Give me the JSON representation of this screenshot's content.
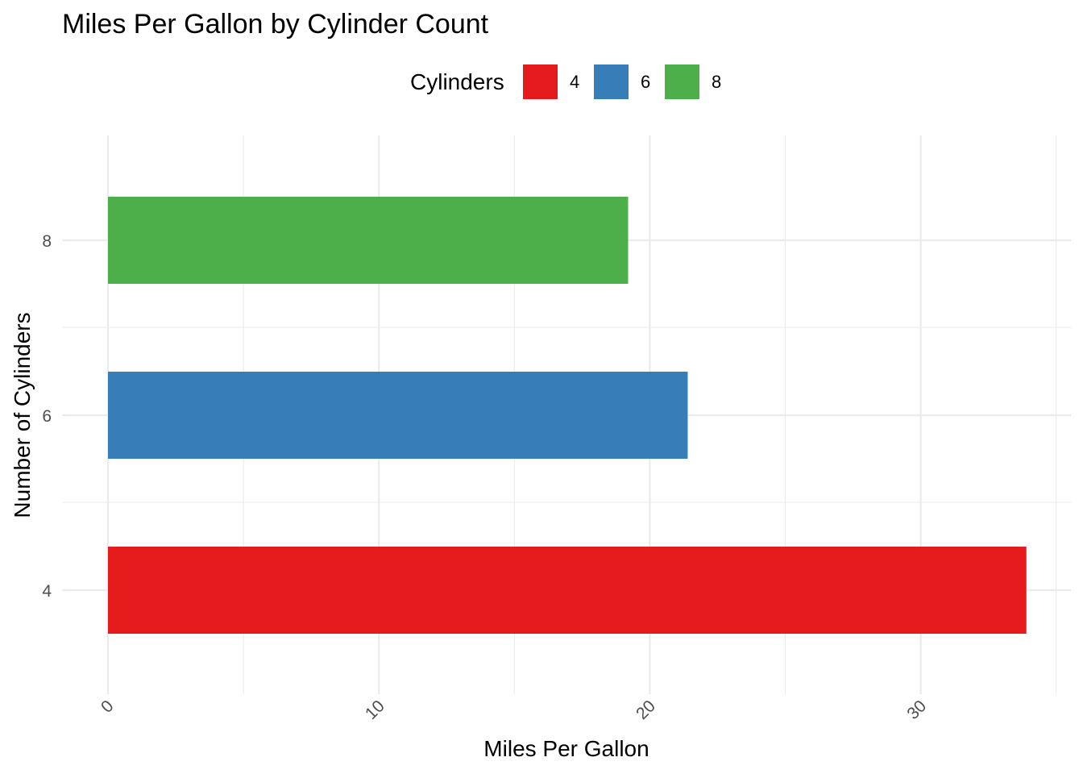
{
  "chart_data": {
    "type": "bar",
    "orientation": "horizontal",
    "title": "Miles Per Gallon by Cylinder Count",
    "xlabel": "Miles Per Gallon",
    "ylabel": "Number of Cylinders",
    "categories": [
      "4",
      "6",
      "8"
    ],
    "values": [
      33.9,
      21.4,
      19.2
    ],
    "colors": [
      "#E41A1C",
      "#377EB8",
      "#4DAF4A"
    ],
    "xlim": [
      0,
      35
    ],
    "x_ticks": [
      0,
      10,
      20,
      30
    ],
    "y_tick_labels": [
      "4",
      "6",
      "8"
    ],
    "legend": {
      "title": "Cylinders",
      "position": "top",
      "entries": [
        "4",
        "6",
        "8"
      ]
    },
    "grid": true
  }
}
